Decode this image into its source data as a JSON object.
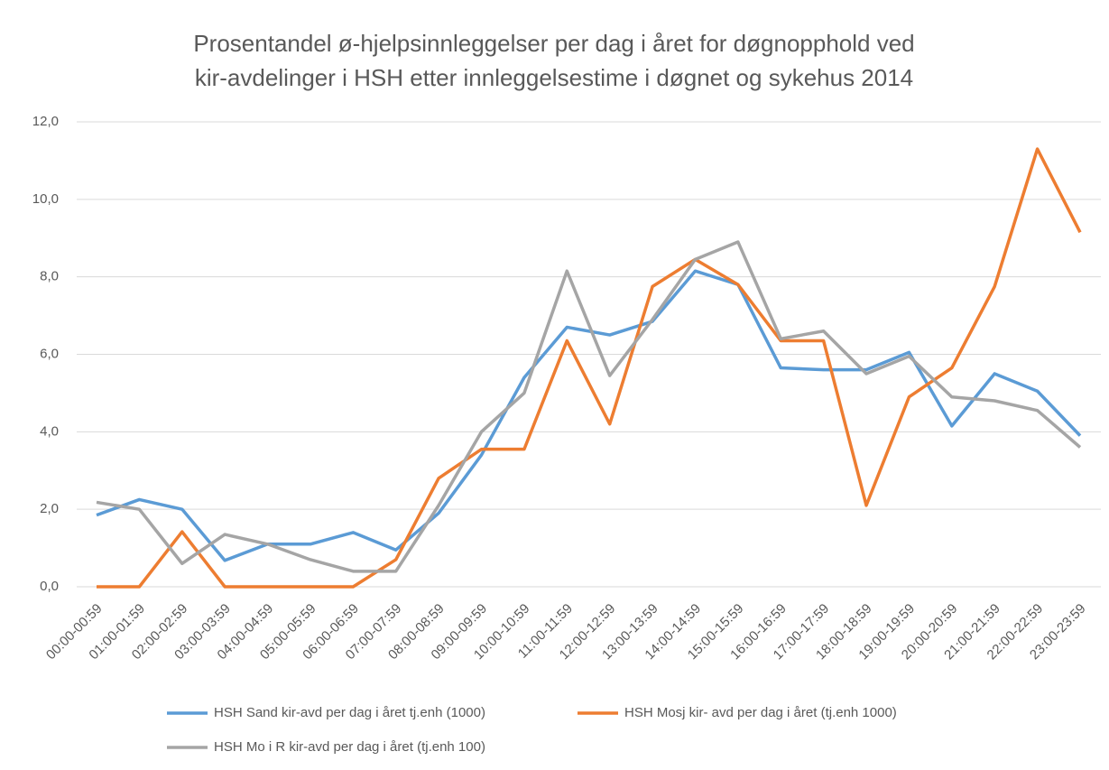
{
  "chart_data": {
    "type": "line",
    "title": [
      "Prosentandel ø-hjelpsinnleggelser per dag i året for døgnopphold ved",
      "kir-avdelinger i HSH etter innleggelsestime i døgnet og sykehus 2014"
    ],
    "categories": [
      "00:00-00:59",
      "01:00-01:59",
      "02:00-02:59",
      "03:00-03:59",
      "04:00-04:59",
      "05:00-05:59",
      "06:00-06:59",
      "07:00-07:59",
      "08:00-08:59",
      "09:00-09:59",
      "10:00-10:59",
      "11:00-11:59",
      "12:00-12:59",
      "13:00-13:59",
      "14:00-14:59",
      "15:00-15:59",
      "16:00-16:59",
      "17:00-17:59",
      "18:00-18:59",
      "19:00-19:59",
      "20:00-20:59",
      "21:00-21:59",
      "22:00-22:59",
      "23:00-23:59"
    ],
    "series": [
      {
        "name": "HSH Sand kir-avd per dag i året tj.enh (1000)",
        "color": "#5b9bd5",
        "values": [
          1.85,
          2.25,
          2.0,
          0.68,
          1.1,
          1.1,
          1.4,
          0.95,
          1.9,
          3.4,
          5.4,
          6.7,
          6.5,
          6.85,
          8.15,
          7.8,
          5.65,
          5.6,
          5.6,
          6.05,
          4.15,
          5.5,
          5.05,
          3.9
        ]
      },
      {
        "name": "HSH Mosj kir- avd per dag i året (tj.enh 1000)",
        "color": "#ed7d31",
        "values": [
          0,
          0,
          1.42,
          0,
          0,
          0,
          0,
          0.7,
          2.8,
          3.55,
          3.55,
          6.35,
          4.2,
          7.75,
          8.45,
          7.8,
          6.35,
          6.35,
          2.1,
          4.9,
          5.65,
          7.75,
          11.3,
          9.15
        ]
      },
      {
        "name": "HSH Mo i R kir-avd per dag i året (tj.enh 100)",
        "color": "#a5a5a5",
        "values": [
          2.18,
          2.0,
          0.6,
          1.35,
          1.1,
          0.7,
          0.4,
          0.4,
          2.1,
          4.0,
          5.0,
          8.15,
          5.45,
          6.9,
          8.45,
          8.9,
          6.4,
          6.6,
          5.5,
          5.95,
          4.9,
          4.8,
          4.55,
          3.6
        ]
      }
    ],
    "ylim": [
      0,
      12
    ],
    "yticks": [
      {
        "value": 0,
        "label": "0,0"
      },
      {
        "value": 2,
        "label": "2,0"
      },
      {
        "value": 4,
        "label": "4,0"
      },
      {
        "value": 6,
        "label": "6,0"
      },
      {
        "value": 8,
        "label": "8,0"
      },
      {
        "value": 10,
        "label": "10,0"
      },
      {
        "value": 12,
        "label": "12,0"
      }
    ],
    "grid": true,
    "legend": "bottom"
  }
}
